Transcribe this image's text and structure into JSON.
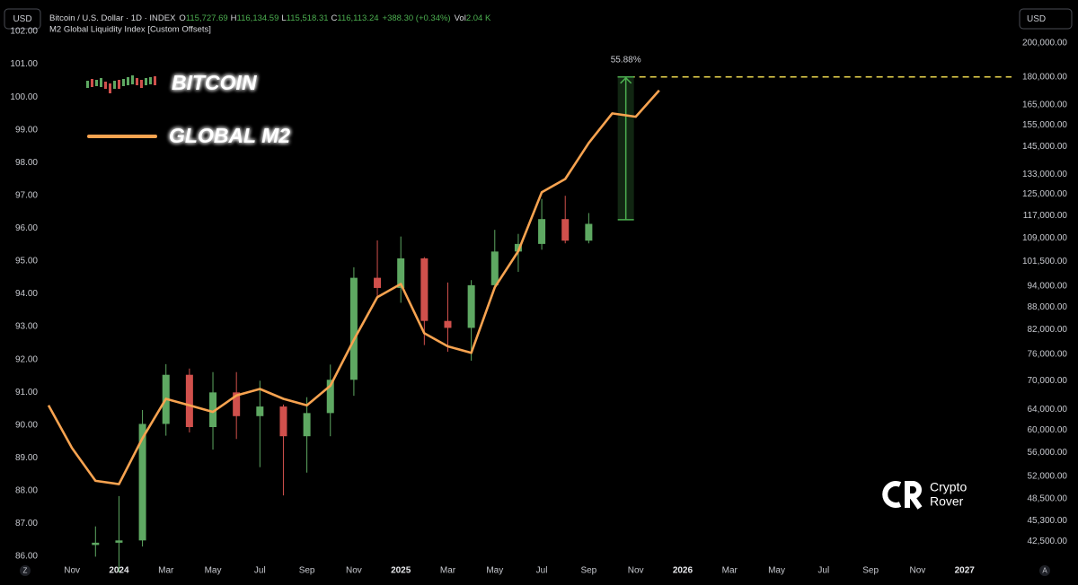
{
  "header": {
    "currency_left": "USD",
    "currency_right": "USD",
    "symbol": "Bitcoin / U.S. Dollar · 1D · INDEX",
    "ohlc": [
      {
        "key": "O",
        "value": "115,727.69"
      },
      {
        "key": "H",
        "value": "116,134.59"
      },
      {
        "key": "L",
        "value": "115,518.31"
      },
      {
        "key": "C",
        "value": "116,113.24"
      }
    ],
    "change": "+388.30 (+0.34%)",
    "vol_key": "Vol",
    "vol": "2.04 K",
    "indicator": "M2 Global Liquidity Index [Custom Offsets]"
  },
  "watermark": [
    "Crypto",
    "Rover"
  ],
  "footer": {
    "left": "Z",
    "right": "A"
  },
  "chart_data": {
    "type": "candlestick",
    "xlim": [
      "2023-10",
      "2027-03"
    ],
    "xticks": [
      {
        "value": "2023-11",
        "label": "Nov"
      },
      {
        "value": "2024-01",
        "label": "2024"
      },
      {
        "value": "2024-03",
        "label": "Mar"
      },
      {
        "value": "2024-05",
        "label": "May"
      },
      {
        "value": "2024-07",
        "label": "Jul"
      },
      {
        "value": "2024-09",
        "label": "Sep"
      },
      {
        "value": "2024-11",
        "label": "Nov"
      },
      {
        "value": "2025-01",
        "label": "2025"
      },
      {
        "value": "2025-03",
        "label": "Mar"
      },
      {
        "value": "2025-05",
        "label": "May"
      },
      {
        "value": "2025-07",
        "label": "Jul"
      },
      {
        "value": "2025-09",
        "label": "Sep"
      },
      {
        "value": "2025-11",
        "label": "Nov"
      },
      {
        "value": "2026-01",
        "label": "2026"
      },
      {
        "value": "2026-03",
        "label": "Mar"
      },
      {
        "value": "2026-05",
        "label": "May"
      },
      {
        "value": "2026-07",
        "label": "Jul"
      },
      {
        "value": "2026-09",
        "label": "Sep"
      },
      {
        "value": "2026-11",
        "label": "Nov"
      },
      {
        "value": "2027-01",
        "label": "2027"
      }
    ],
    "ylim": [
      86,
      102
    ],
    "yticks": [
      {
        "value": 86,
        "label": "86.00"
      },
      {
        "value": 87,
        "label": "87.00"
      },
      {
        "value": 88,
        "label": "88.00"
      },
      {
        "value": 89,
        "label": "89.00"
      },
      {
        "value": 90,
        "label": "90.00"
      },
      {
        "value": 91,
        "label": "91.00"
      },
      {
        "value": 92,
        "label": "92.00"
      },
      {
        "value": 93,
        "label": "93.00"
      },
      {
        "value": 94,
        "label": "94.00"
      },
      {
        "value": 95,
        "label": "95.00"
      },
      {
        "value": 96,
        "label": "96.00"
      },
      {
        "value": 97,
        "label": "97.00"
      },
      {
        "value": 98,
        "label": "98.00"
      },
      {
        "value": 99,
        "label": "99.00"
      },
      {
        "value": 100,
        "label": "100.00"
      },
      {
        "value": 101,
        "label": "101.00"
      },
      {
        "value": 102,
        "label": "102.00"
      }
    ],
    "y2log": true,
    "y2lim": [
      40550,
      207400
    ],
    "y2ticks": [
      {
        "value": 200000,
        "label": "200,000.00"
      },
      {
        "value": 180000,
        "label": "180,000.00"
      },
      {
        "value": 165000,
        "label": "165,000.00"
      },
      {
        "value": 155000,
        "label": "155,000.00"
      },
      {
        "value": 145000,
        "label": "145,000.00"
      },
      {
        "value": 133000,
        "label": "133,000.00"
      },
      {
        "value": 125000,
        "label": "125,000.00"
      },
      {
        "value": 117000,
        "label": "117,000.00"
      },
      {
        "value": 109000,
        "label": "109,000.00"
      },
      {
        "value": 101500,
        "label": "101,500.00"
      },
      {
        "value": 94000,
        "label": "94,000.00"
      },
      {
        "value": 88000,
        "label": "88,000.00"
      },
      {
        "value": 82000,
        "label": "82,000.00"
      },
      {
        "value": 76000,
        "label": "76,000.00"
      },
      {
        "value": 70000,
        "label": "70,000.00"
      },
      {
        "value": 64000,
        "label": "64,000.00"
      },
      {
        "value": 60000,
        "label": "60,000.00"
      },
      {
        "value": 56000,
        "label": "56,000.00"
      },
      {
        "value": 52000,
        "label": "52,000.00"
      },
      {
        "value": 48500,
        "label": "48,500.00"
      },
      {
        "value": 45300,
        "label": "45,300.00"
      },
      {
        "value": 42500,
        "label": "42,500.00"
      }
    ],
    "grid": false,
    "series": [
      {
        "name": "BITCOIN",
        "type": "candlestick",
        "axis": "y2",
        "up_color": "#5ea862",
        "down_color": "#d0504c",
        "x": [
          "2023-12",
          "2024-01",
          "2024-02",
          "2024-03",
          "2024-04",
          "2024-05",
          "2024-06",
          "2024-07",
          "2024-08",
          "2024-09",
          "2024-10",
          "2024-11",
          "2024-12",
          "2025-01",
          "2025-02",
          "2025-03",
          "2025-04",
          "2025-05",
          "2025-06",
          "2025-07",
          "2025-08",
          "2025-09"
        ],
        "open": [
          42000,
          42300,
          42600,
          61200,
          71300,
          60600,
          67500,
          62700,
          64600,
          58900,
          63300,
          70200,
          96400,
          93400,
          102400,
          84300,
          82500,
          94200,
          104600,
          107100,
          115700,
          108200
        ],
        "high": [
          44500,
          48900,
          63900,
          73700,
          72700,
          71900,
          71900,
          70000,
          65000,
          66500,
          73600,
          99600,
          108300,
          109600,
          102800,
          95000,
          95700,
          111900,
          110500,
          123200,
          124400,
          117900
        ],
        "low": [
          40500,
          38600,
          41800,
          59000,
          59600,
          56500,
          58400,
          53500,
          49000,
          52600,
          58900,
          66800,
          90500,
          89200,
          78200,
          76600,
          74500,
          93300,
          98200,
          105200,
          107300,
          107300
        ],
        "close": [
          42300,
          42600,
          61200,
          71300,
          60600,
          67500,
          62700,
          64600,
          58900,
          63300,
          70200,
          96400,
          93400,
          102400,
          84300,
          82500,
          94200,
          104600,
          107100,
          115700,
          108200,
          114000
        ]
      },
      {
        "name": "GLOBAL M2",
        "type": "line",
        "axis": "y",
        "color": "#f7a350",
        "x": [
          "2023-10",
          "2023-11",
          "2023-12",
          "2024-01",
          "2024-02",
          "2024-03",
          "2024-04",
          "2024-05",
          "2024-06",
          "2024-07",
          "2024-08",
          "2024-09",
          "2024-10",
          "2024-11",
          "2024-12",
          "2025-01",
          "2025-02",
          "2025-03",
          "2025-04",
          "2025-05",
          "2025-06",
          "2025-07",
          "2025-08",
          "2025-09",
          "2025-10",
          "2025-11",
          "2025-12"
        ],
        "values": [
          90.6,
          89.3,
          88.3,
          88.2,
          89.6,
          90.8,
          90.6,
          90.4,
          90.9,
          91.1,
          90.8,
          90.6,
          91.2,
          92.6,
          93.9,
          94.3,
          92.8,
          92.4,
          92.2,
          94.2,
          95.3,
          97.1,
          97.5,
          98.6,
          99.5,
          99.4,
          100.2
        ]
      }
    ],
    "annotations": {
      "measure": {
        "label": "55.88%",
        "x": "2025-11",
        "low": 115500,
        "high": 180000,
        "color": "#4caf50"
      },
      "target": {
        "value": 180000,
        "color": "#e8d44d"
      }
    }
  }
}
